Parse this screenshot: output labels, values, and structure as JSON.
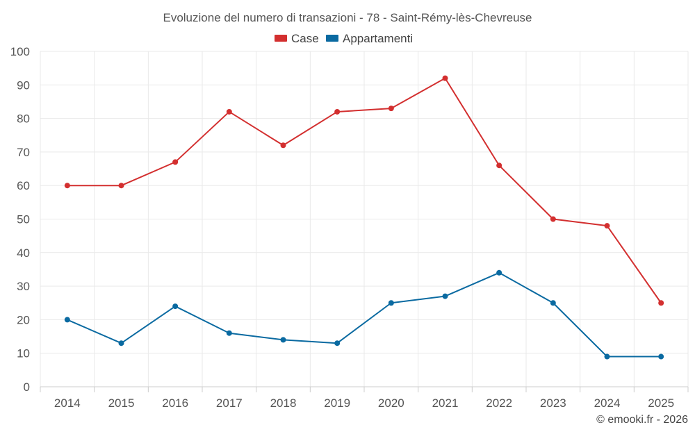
{
  "chart_data": {
    "type": "line",
    "title": "Evoluzione del numero di transazioni - 78 - Saint-Rémy-lès-Chevreuse",
    "categories": [
      "2014",
      "2015",
      "2016",
      "2017",
      "2018",
      "2019",
      "2020",
      "2021",
      "2022",
      "2023",
      "2024",
      "2025"
    ],
    "series": [
      {
        "name": "Case",
        "color": "#d32f2f",
        "values": [
          60,
          60,
          67,
          82,
          72,
          82,
          83,
          92,
          66,
          50,
          48,
          25
        ]
      },
      {
        "name": "Appartamenti",
        "color": "#0a6aa1",
        "values": [
          20,
          13,
          24,
          16,
          14,
          13,
          25,
          27,
          34,
          25,
          9,
          9
        ]
      }
    ],
    "y_ticks": [
      "0",
      "10",
      "20",
      "30",
      "40",
      "50",
      "60",
      "70",
      "80",
      "90",
      "100"
    ],
    "ylim": [
      0,
      100
    ],
    "xlabel": "",
    "ylabel": "",
    "grid": true,
    "legend_position": "top-center"
  },
  "credit": "© emooki.fr - 2026"
}
